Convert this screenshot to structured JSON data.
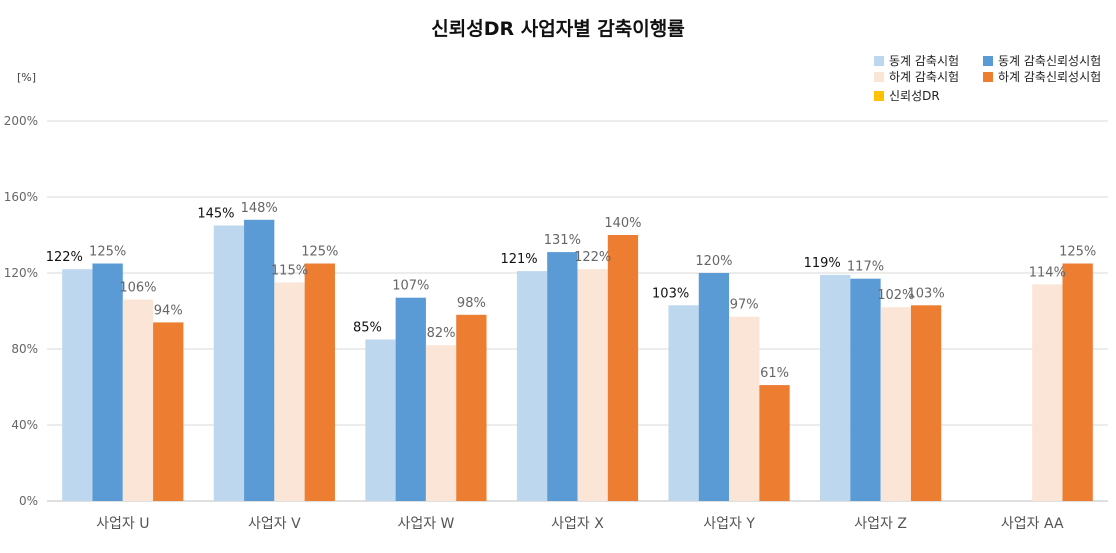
{
  "chart_data": {
    "type": "bar",
    "title": "신뢰성DR 사업자별 감축이행률",
    "unit_label": "[%]",
    "ylim": [
      0,
      200
    ],
    "yticks": [
      0,
      40,
      80,
      120,
      160,
      200
    ],
    "ytick_labels": [
      "0%",
      "40%",
      "80%",
      "120%",
      "160%",
      "200%"
    ],
    "grid": true,
    "legend_position": "top-right",
    "categories": [
      "사업자 U",
      "사업자 V",
      "사업자 W",
      "사업자 X",
      "사업자 Y",
      "사업자 Z",
      "사업자 AA"
    ],
    "series": [
      {
        "name": "동계 감축시험",
        "color": "#BDD7EE",
        "label_color": "#111111",
        "values": [
          122,
          145,
          85,
          121,
          103,
          119,
          null
        ]
      },
      {
        "name": "동계 감축신뢰성시험",
        "color": "#5B9BD5",
        "label_color": "#666666",
        "values": [
          125,
          148,
          107,
          131,
          120,
          117,
          null
        ]
      },
      {
        "name": "하계 감축시험",
        "color": "#FBE5D6",
        "label_color": "#666666",
        "values": [
          106,
          115,
          82,
          122,
          97,
          102,
          114
        ]
      },
      {
        "name": "하계 감축신뢰성시험",
        "color": "#ED7D31",
        "label_color": "#666666",
        "values": [
          94,
          125,
          98,
          140,
          61,
          103,
          125
        ]
      },
      {
        "name": "신뢰성DR",
        "color": "#FFC000",
        "label_color": "#666666",
        "values": [
          null,
          null,
          null,
          null,
          null,
          null,
          null
        ]
      }
    ]
  }
}
